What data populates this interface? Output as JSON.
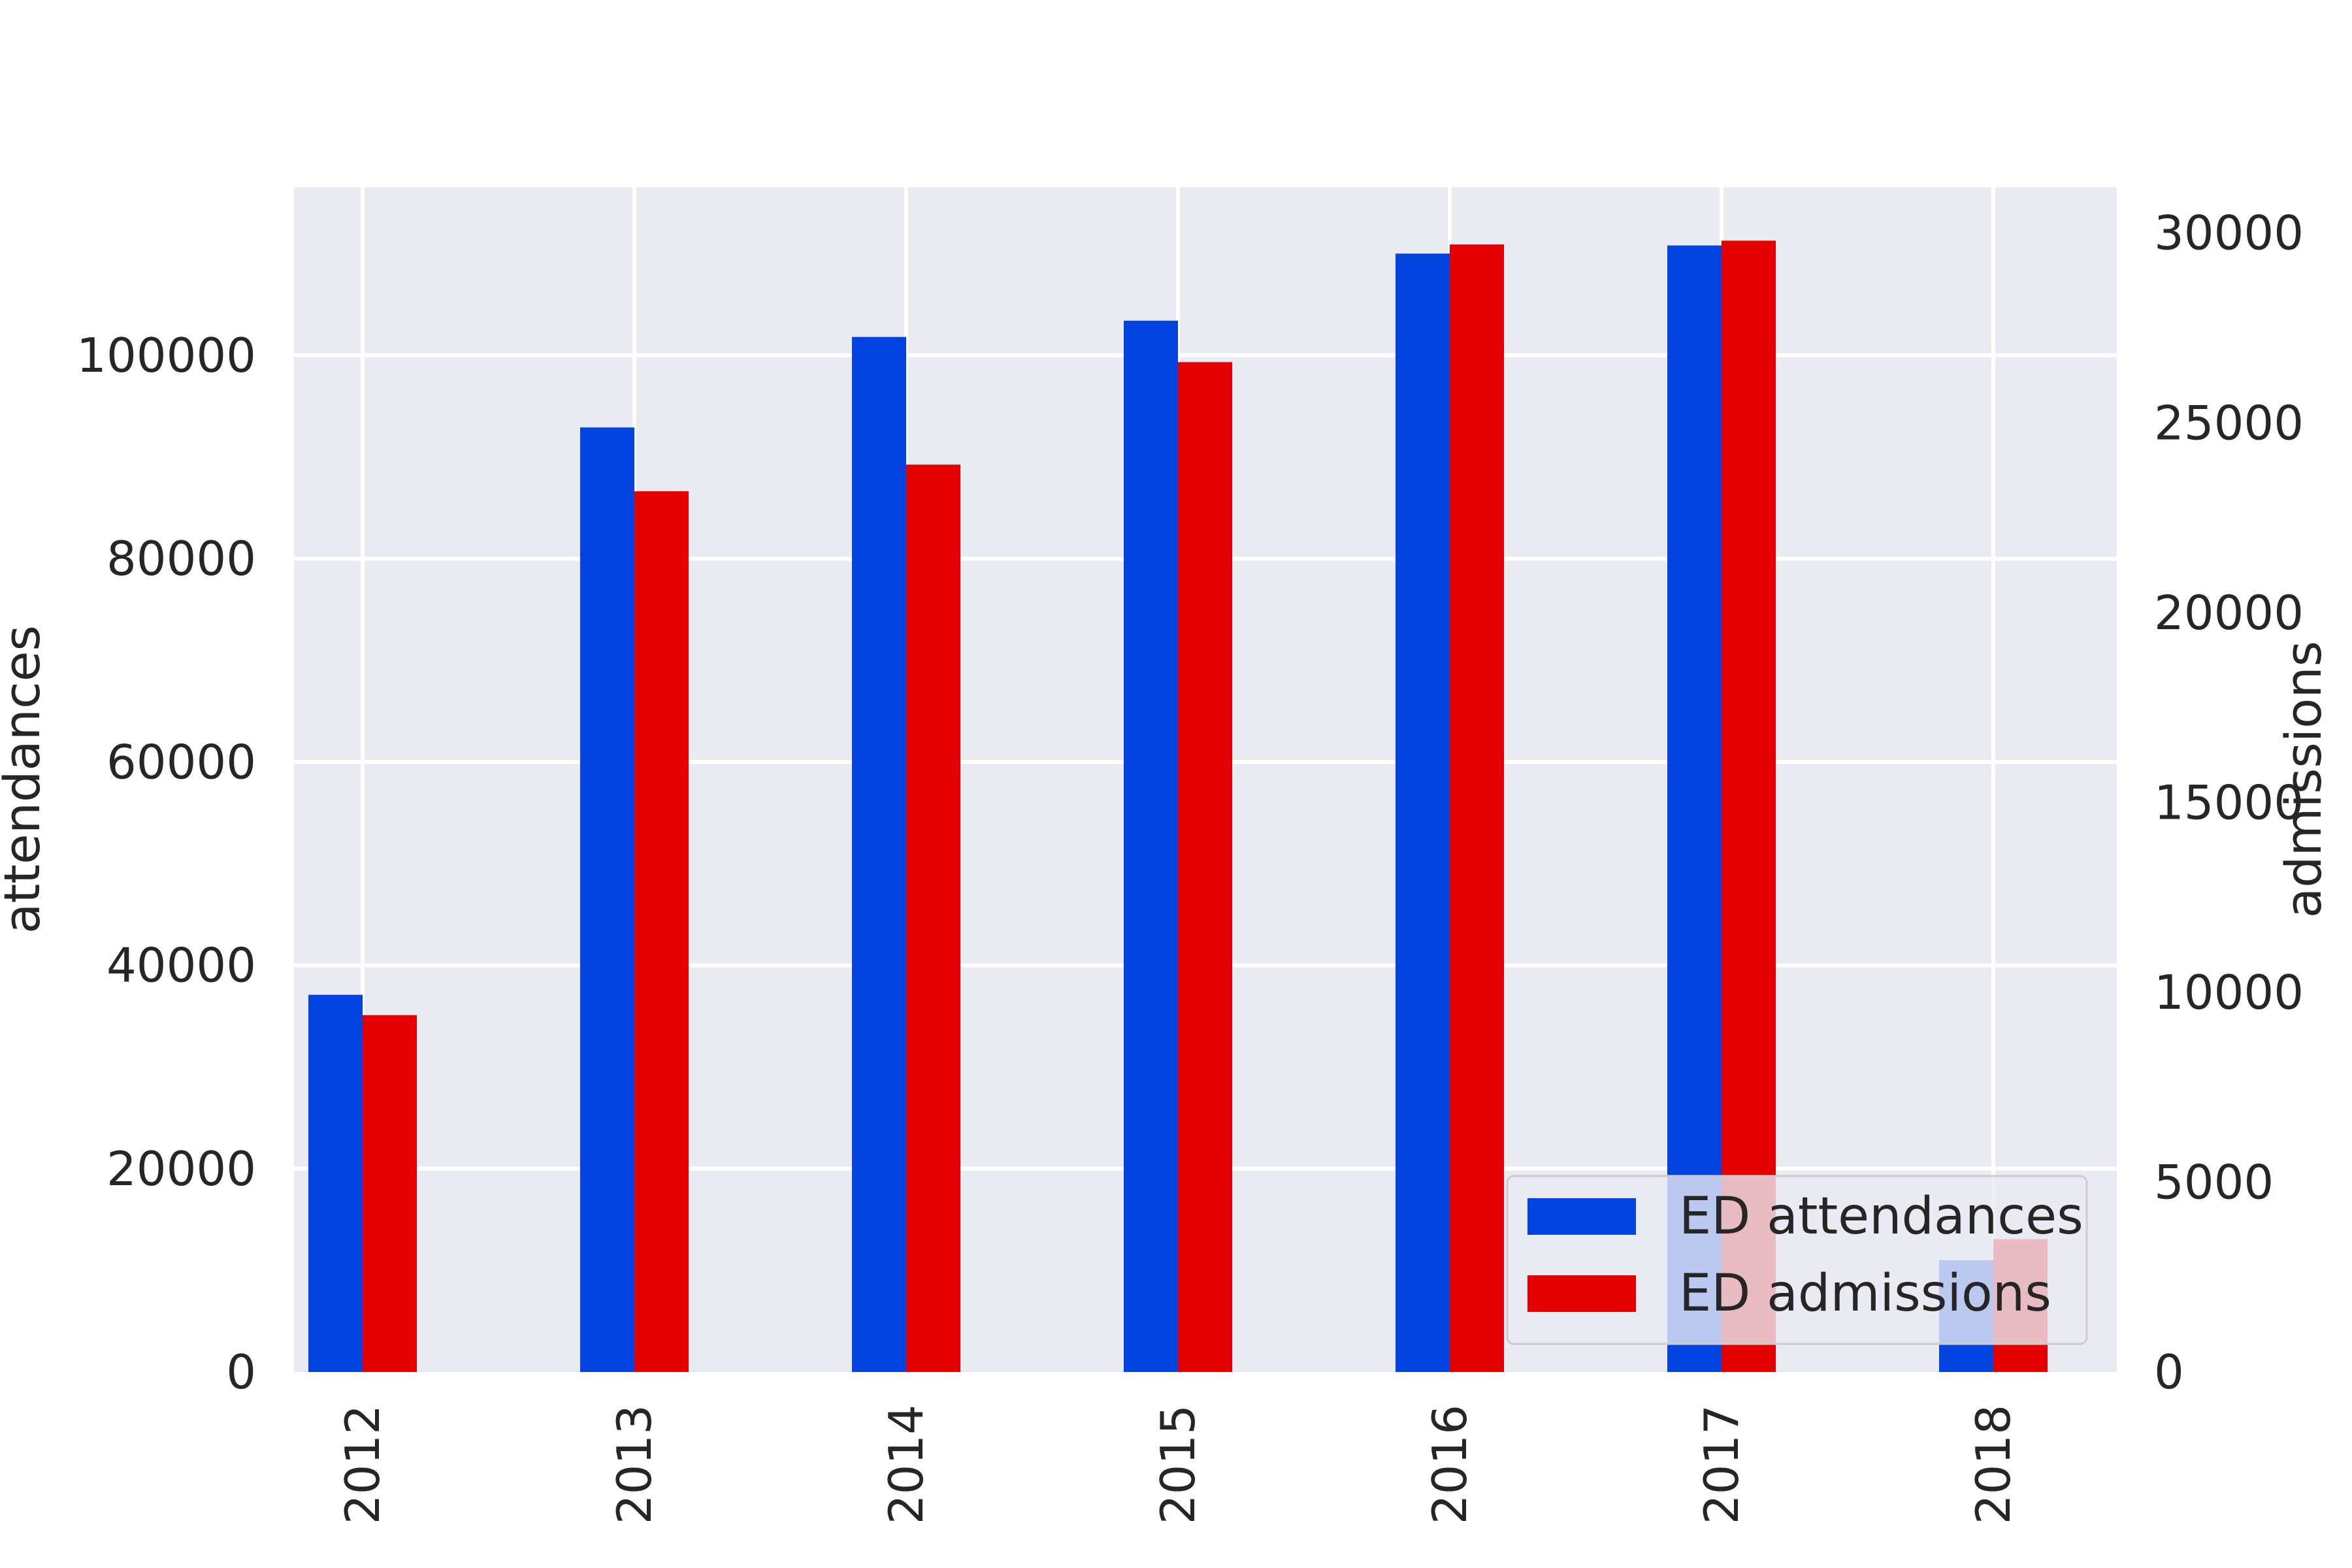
{
  "chart_data": {
    "type": "bar",
    "categories": [
      "2012",
      "2013",
      "2014",
      "2015",
      "2016",
      "2017",
      "2018"
    ],
    "series": [
      {
        "name": "ED attendances",
        "axis": "left",
        "color": "#0343df",
        "values": [
          37100,
          92900,
          101800,
          103400,
          110000,
          110800,
          11000
        ]
      },
      {
        "name": "ED admissions",
        "axis": "right",
        "color": "#e50000",
        "values": [
          9400,
          23200,
          23900,
          26600,
          29700,
          29800,
          3500
        ]
      }
    ],
    "left_axis": {
      "label": "attendances",
      "range": [
        0,
        116500
      ],
      "ticks": [
        0,
        20000,
        40000,
        60000,
        80000,
        100000
      ],
      "tick_labels": [
        "0",
        "20000",
        "40000",
        "60000",
        "80000",
        "100000"
      ]
    },
    "right_axis": {
      "label": "admissions",
      "range": [
        0,
        31200
      ],
      "ticks": [
        0,
        5000,
        10000,
        15000,
        20000,
        25000,
        30000
      ],
      "tick_labels": [
        "0",
        "5000",
        "10000",
        "15000",
        "20000",
        "25000",
        "30000"
      ]
    },
    "x_tick_rotation": "vertical",
    "grid": true,
    "background": "#eaeaf2",
    "legend": {
      "placement": "lower-right",
      "entries": [
        "ED attendances",
        "ED admissions"
      ]
    }
  }
}
